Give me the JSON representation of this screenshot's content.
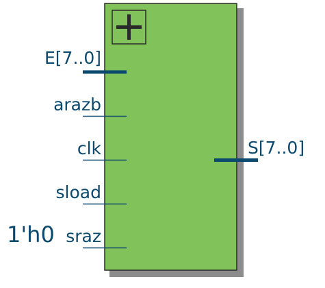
{
  "block": {
    "icon": "plus-icon",
    "fill_color": "#82c25b",
    "border_color": "#2a2a2a",
    "shadow_color": "#8c8c8c",
    "wire_color": "#0b4a6e"
  },
  "inputs": [
    {
      "id": "e",
      "label": "E[7..0]",
      "bus": true
    },
    {
      "id": "arazb",
      "label": "arazb",
      "bus": false
    },
    {
      "id": "clk",
      "label": "clk",
      "bus": false
    },
    {
      "id": "sload",
      "label": "sload",
      "bus": false
    },
    {
      "id": "sraz",
      "label": "sraz",
      "bus": false,
      "constant": "1'h0"
    }
  ],
  "outputs": [
    {
      "id": "s",
      "label": "S[7..0]",
      "bus": true
    }
  ]
}
